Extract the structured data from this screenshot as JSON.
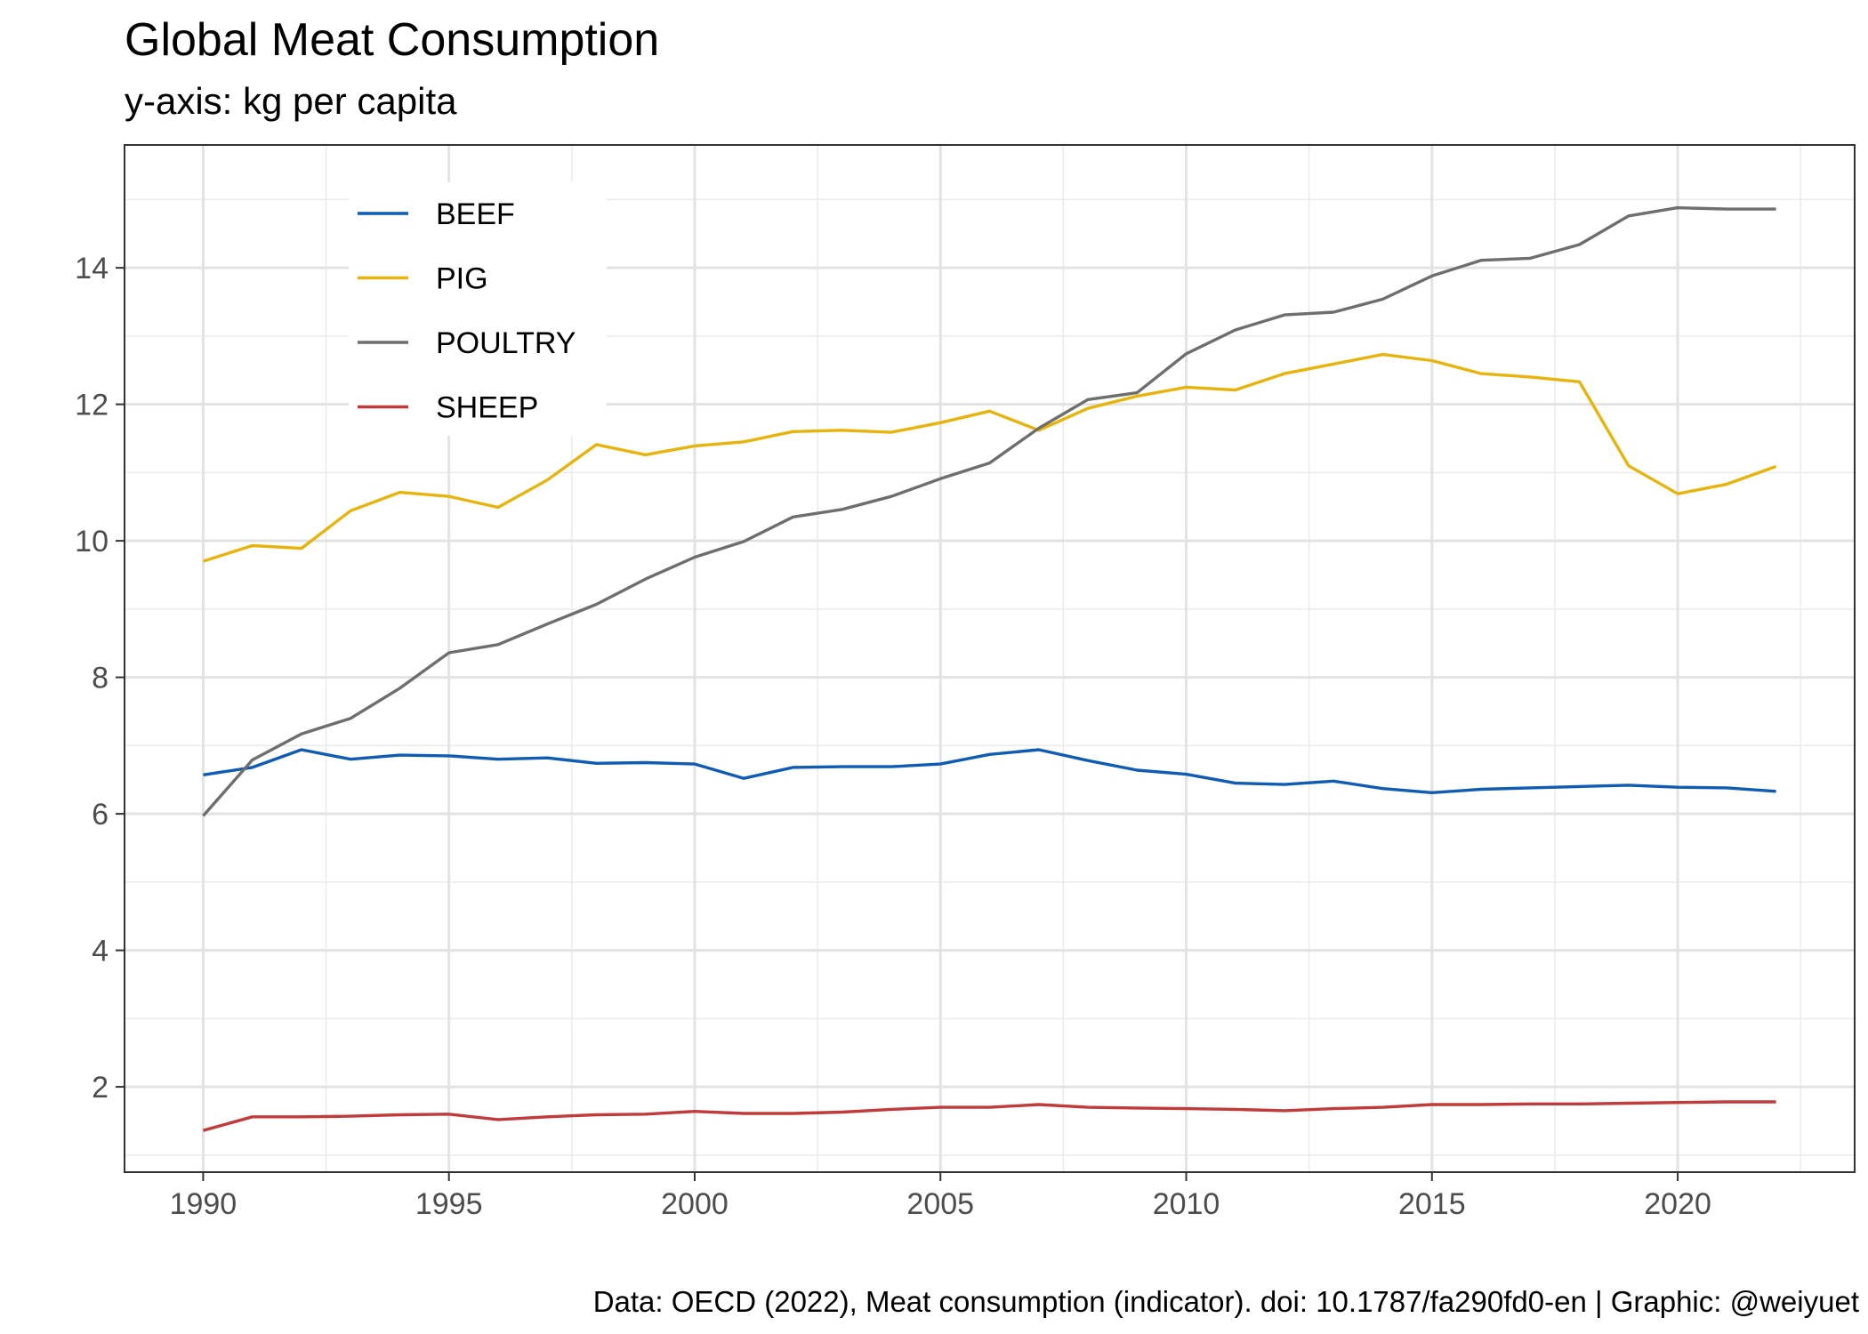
{
  "chart_data": {
    "type": "line",
    "title": "Global Meat Consumption",
    "subtitle": "y-axis: kg per capita",
    "caption": "Data: OECD (2022), Meat consumption (indicator). doi: 10.1787/fa290fd0-en | Graphic: @weiyuet",
    "xlabel": "",
    "ylabel": "",
    "xlim": [
      1988.4,
      2023.6
    ],
    "ylim": [
      0.75,
      15.8
    ],
    "x_ticks": [
      1990,
      1995,
      2000,
      2005,
      2010,
      2015,
      2020
    ],
    "y_ticks": [
      2,
      4,
      6,
      8,
      10,
      12,
      14
    ],
    "grid": true,
    "legend_position": "top-left inside",
    "x": [
      1990,
      1991,
      1992,
      1993,
      1994,
      1995,
      1996,
      1997,
      1998,
      1999,
      2000,
      2001,
      2002,
      2003,
      2004,
      2005,
      2006,
      2007,
      2008,
      2009,
      2010,
      2011,
      2012,
      2013,
      2014,
      2015,
      2016,
      2017,
      2018,
      2019,
      2020,
      2021,
      2022
    ],
    "series": [
      {
        "name": "BEEF",
        "color": "#0f5cb5",
        "values": [
          6.57,
          6.68,
          6.94,
          6.8,
          6.86,
          6.85,
          6.8,
          6.82,
          6.74,
          6.75,
          6.73,
          6.52,
          6.68,
          6.69,
          6.69,
          6.73,
          6.87,
          6.94,
          6.78,
          6.64,
          6.58,
          6.45,
          6.43,
          6.48,
          6.37,
          6.31,
          6.36,
          6.38,
          6.4,
          6.42,
          6.39,
          6.38,
          6.33
        ]
      },
      {
        "name": "PIG",
        "color": "#e8b40c",
        "values": [
          9.7,
          9.93,
          9.89,
          10.44,
          10.71,
          10.65,
          10.49,
          10.89,
          11.41,
          11.26,
          11.39,
          11.45,
          11.6,
          11.62,
          11.59,
          11.73,
          11.9,
          11.62,
          11.94,
          12.12,
          12.25,
          12.21,
          12.45,
          12.59,
          12.73,
          12.64,
          12.45,
          12.4,
          12.33,
          11.1,
          10.69,
          10.83,
          11.09
        ]
      },
      {
        "name": "POULTRY",
        "color": "#6e6e6e",
        "values": [
          5.97,
          6.79,
          7.17,
          7.4,
          7.84,
          8.36,
          8.48,
          8.78,
          9.07,
          9.44,
          9.76,
          9.99,
          10.35,
          10.46,
          10.65,
          10.91,
          11.14,
          11.65,
          12.07,
          12.17,
          12.74,
          13.09,
          13.31,
          13.35,
          13.54,
          13.88,
          14.11,
          14.14,
          14.34,
          14.76,
          14.88,
          14.86,
          14.86
        ]
      },
      {
        "name": "SHEEP",
        "color": "#c23b3b",
        "values": [
          1.36,
          1.56,
          1.56,
          1.57,
          1.59,
          1.6,
          1.52,
          1.56,
          1.59,
          1.6,
          1.64,
          1.61,
          1.61,
          1.63,
          1.67,
          1.7,
          1.7,
          1.74,
          1.7,
          1.69,
          1.68,
          1.67,
          1.65,
          1.68,
          1.7,
          1.74,
          1.74,
          1.75,
          1.75,
          1.76,
          1.77,
          1.78,
          1.78
        ]
      }
    ]
  }
}
